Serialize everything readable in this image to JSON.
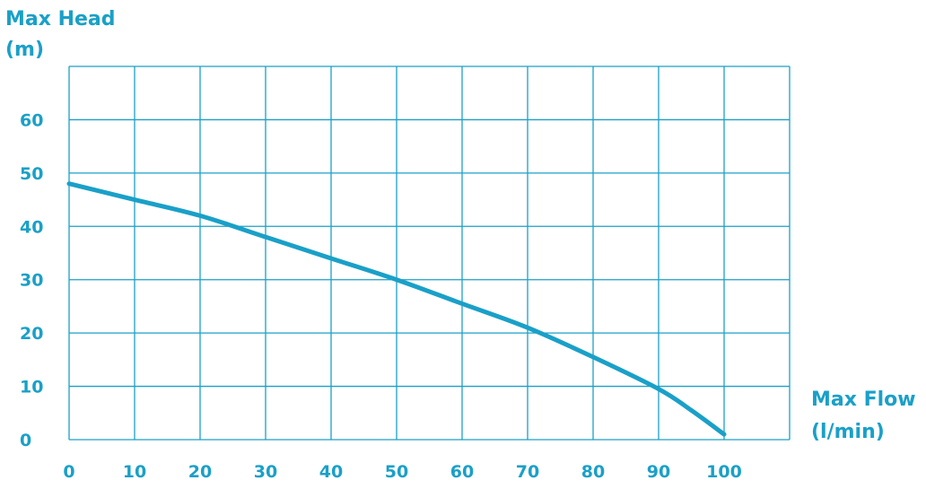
{
  "theme": {
    "accent": "#1aa0c8",
    "grid": "#1aa0c8",
    "background": "#ffffff"
  },
  "chart_data": {
    "type": "line",
    "title": "",
    "ylabel_line1": "Max Head",
    "ylabel_line2": "(m)",
    "xlabel_line1": "Max Flow",
    "xlabel_line2": "(l/min)",
    "xlim": [
      0,
      110
    ],
    "ylim": [
      0,
      70
    ],
    "x_ticks": [
      0,
      10,
      20,
      30,
      40,
      50,
      60,
      70,
      80,
      90,
      100
    ],
    "y_ticks": [
      0,
      10,
      20,
      30,
      40,
      50,
      60
    ],
    "grid": true,
    "series": [
      {
        "x": [
          0,
          10,
          20,
          30,
          40,
          50,
          60,
          70,
          80,
          90,
          95,
          100
        ],
        "y": [
          48,
          45,
          42,
          38,
          34,
          30,
          25.5,
          21,
          15.5,
          9.5,
          5.5,
          1
        ]
      }
    ]
  }
}
